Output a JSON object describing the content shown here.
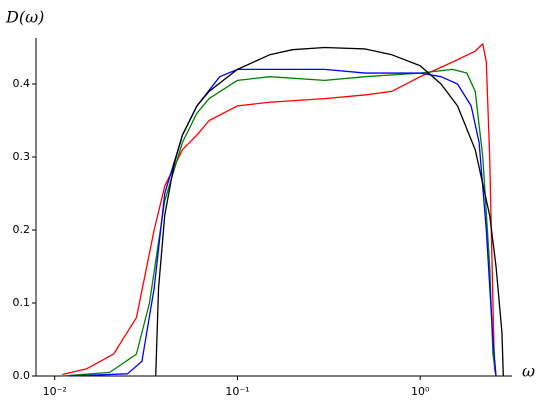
{
  "chart_data": {
    "type": "line",
    "x_label": "ω",
    "y_label": "D(ω)",
    "xlog": true,
    "grid": false,
    "xlim": [
      0.0079,
      3.1
    ],
    "ylim": [
      0,
      0.46
    ],
    "xticks": [
      {
        "value": 0.01,
        "label": "10⁻²"
      },
      {
        "value": 0.1,
        "label": "10⁻¹"
      },
      {
        "value": 1,
        "label": "10⁰"
      }
    ],
    "yticks": [
      {
        "value": 0,
        "label": "0.0"
      },
      0.1,
      0.2,
      0.3,
      0.4
    ],
    "series": [
      {
        "color": "#ff0000",
        "x": [
          0.011,
          0.015,
          0.021,
          0.028,
          0.035,
          0.04,
          0.05,
          0.06,
          0.07,
          0.1,
          0.15,
          0.3,
          0.5,
          0.7,
          1.0,
          1.5,
          2.0,
          2.2,
          2.3,
          2.4,
          2.5,
          2.55,
          2.6
        ],
        "values": [
          0.002,
          0.01,
          0.03,
          0.08,
          0.2,
          0.26,
          0.31,
          0.33,
          0.35,
          0.37,
          0.375,
          0.38,
          0.385,
          0.39,
          0.41,
          0.43,
          0.445,
          0.455,
          0.43,
          0.3,
          0.1,
          0.01,
          0
        ]
      },
      {
        "color": "#008000",
        "x": [
          0.011,
          0.02,
          0.028,
          0.033,
          0.04,
          0.05,
          0.06,
          0.07,
          0.1,
          0.15,
          0.3,
          0.5,
          1.0,
          1.5,
          1.8,
          2.0,
          2.2,
          2.4,
          2.5,
          2.6
        ],
        "values": [
          0,
          0.005,
          0.03,
          0.1,
          0.24,
          0.32,
          0.36,
          0.38,
          0.405,
          0.41,
          0.405,
          0.41,
          0.415,
          0.42,
          0.415,
          0.39,
          0.3,
          0.15,
          0.03,
          0
        ]
      },
      {
        "color": "#0000ff",
        "x": [
          0.012,
          0.025,
          0.03,
          0.035,
          0.04,
          0.05,
          0.06,
          0.08,
          0.1,
          0.15,
          0.3,
          0.5,
          1.0,
          1.3,
          1.6,
          1.9,
          2.1,
          2.3,
          2.5,
          2.6
        ],
        "values": [
          0,
          0.003,
          0.02,
          0.12,
          0.25,
          0.33,
          0.37,
          0.41,
          0.42,
          0.42,
          0.42,
          0.415,
          0.415,
          0.41,
          0.4,
          0.37,
          0.32,
          0.2,
          0.05,
          0
        ]
      },
      {
        "color": "#000000",
        "x": [
          0.0357,
          0.037,
          0.04,
          0.045,
          0.05,
          0.06,
          0.07,
          0.1,
          0.15,
          0.2,
          0.3,
          0.5,
          0.7,
          1.0,
          1.3,
          1.6,
          2.0,
          2.4,
          2.6,
          2.8,
          2.85
        ],
        "values": [
          0,
          0.12,
          0.22,
          0.29,
          0.33,
          0.37,
          0.39,
          0.42,
          0.44,
          0.447,
          0.45,
          0.448,
          0.44,
          0.425,
          0.4,
          0.37,
          0.31,
          0.22,
          0.15,
          0.06,
          0
        ]
      }
    ]
  }
}
